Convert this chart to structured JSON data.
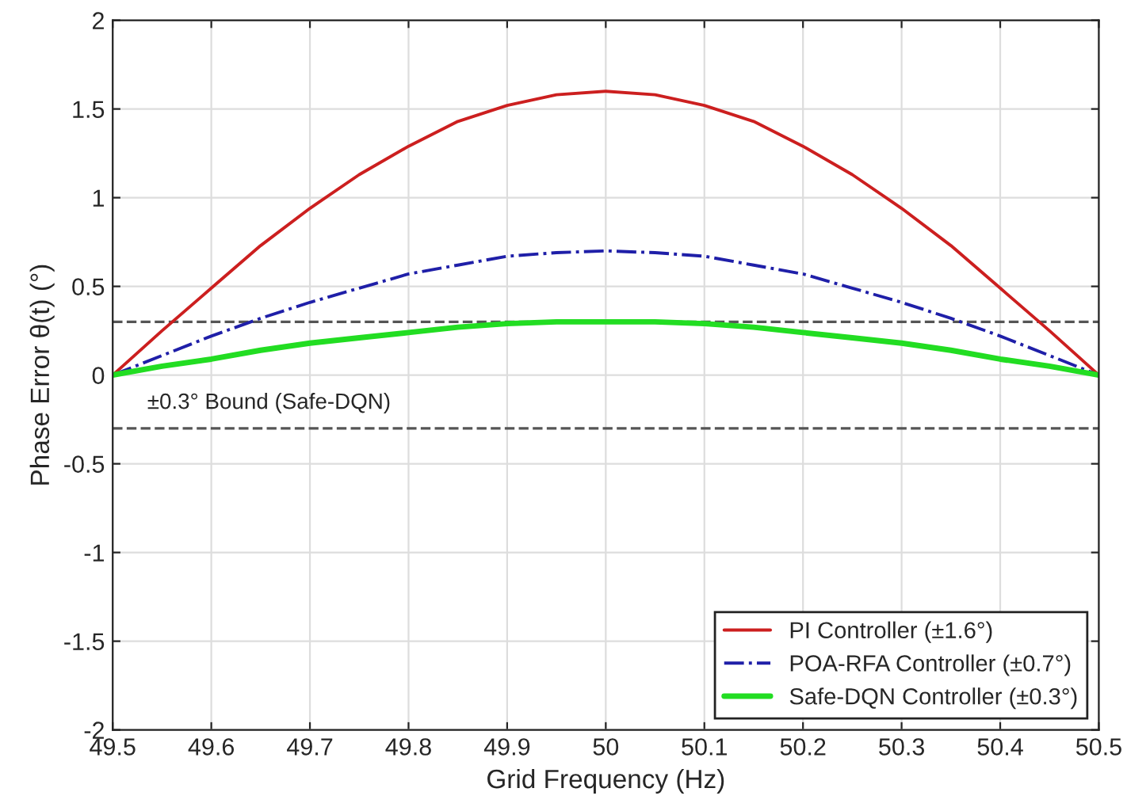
{
  "chart_data": {
    "type": "line",
    "xlabel": "Grid Frequency (Hz)",
    "ylabel": "Phase Error θ(t) (°)",
    "x": [
      49.5,
      49.55,
      49.6,
      49.65,
      49.7,
      49.75,
      49.8,
      49.85,
      49.9,
      49.95,
      50.0,
      50.05,
      50.1,
      50.15,
      50.2,
      50.25,
      50.3,
      50.35,
      50.4,
      50.45,
      50.5
    ],
    "series": [
      {
        "name": "PI Controller (±1.6°)",
        "color": "#cc1f1f",
        "line_style": "solid",
        "values": [
          0,
          0.25,
          0.49,
          0.73,
          0.94,
          1.13,
          1.29,
          1.43,
          1.52,
          1.58,
          1.6,
          1.58,
          1.52,
          1.43,
          1.29,
          1.13,
          0.94,
          0.73,
          0.49,
          0.25,
          0
        ]
      },
      {
        "name": "POA-RFA Controller (±0.7°)",
        "color": "#1f1fa8",
        "line_style": "dashdot",
        "values": [
          0,
          0.11,
          0.22,
          0.32,
          0.41,
          0.49,
          0.57,
          0.62,
          0.67,
          0.69,
          0.7,
          0.69,
          0.67,
          0.62,
          0.57,
          0.49,
          0.41,
          0.32,
          0.22,
          0.11,
          0
        ]
      },
      {
        "name": "Safe-DQN Controller (±0.3°)",
        "color": "#22dd22",
        "line_style": "solid",
        "values": [
          0,
          0.05,
          0.09,
          0.14,
          0.18,
          0.21,
          0.24,
          0.27,
          0.29,
          0.3,
          0.3,
          0.3,
          0.29,
          0.27,
          0.24,
          0.21,
          0.18,
          0.14,
          0.09,
          0.05,
          0
        ]
      }
    ],
    "ref_lines": [
      {
        "axis": "y",
        "value": 0.3,
        "color": "#555555",
        "line_style": "dashed"
      },
      {
        "axis": "y",
        "value": -0.3,
        "color": "#555555",
        "line_style": "dashed"
      }
    ],
    "annotations": [
      "±0.3° Bound (Safe-DQN)"
    ],
    "xlim": [
      49.5,
      50.5
    ],
    "xticks": [
      49.5,
      49.6,
      49.7,
      49.8,
      49.9,
      50,
      50.1,
      50.2,
      50.3,
      50.4,
      50.5
    ],
    "ylim": [
      -2,
      2
    ],
    "yticks": [
      -2,
      -1.5,
      -1,
      -0.5,
      0,
      0.5,
      1,
      1.5,
      2
    ],
    "grid": true,
    "legend": "bottom right"
  }
}
